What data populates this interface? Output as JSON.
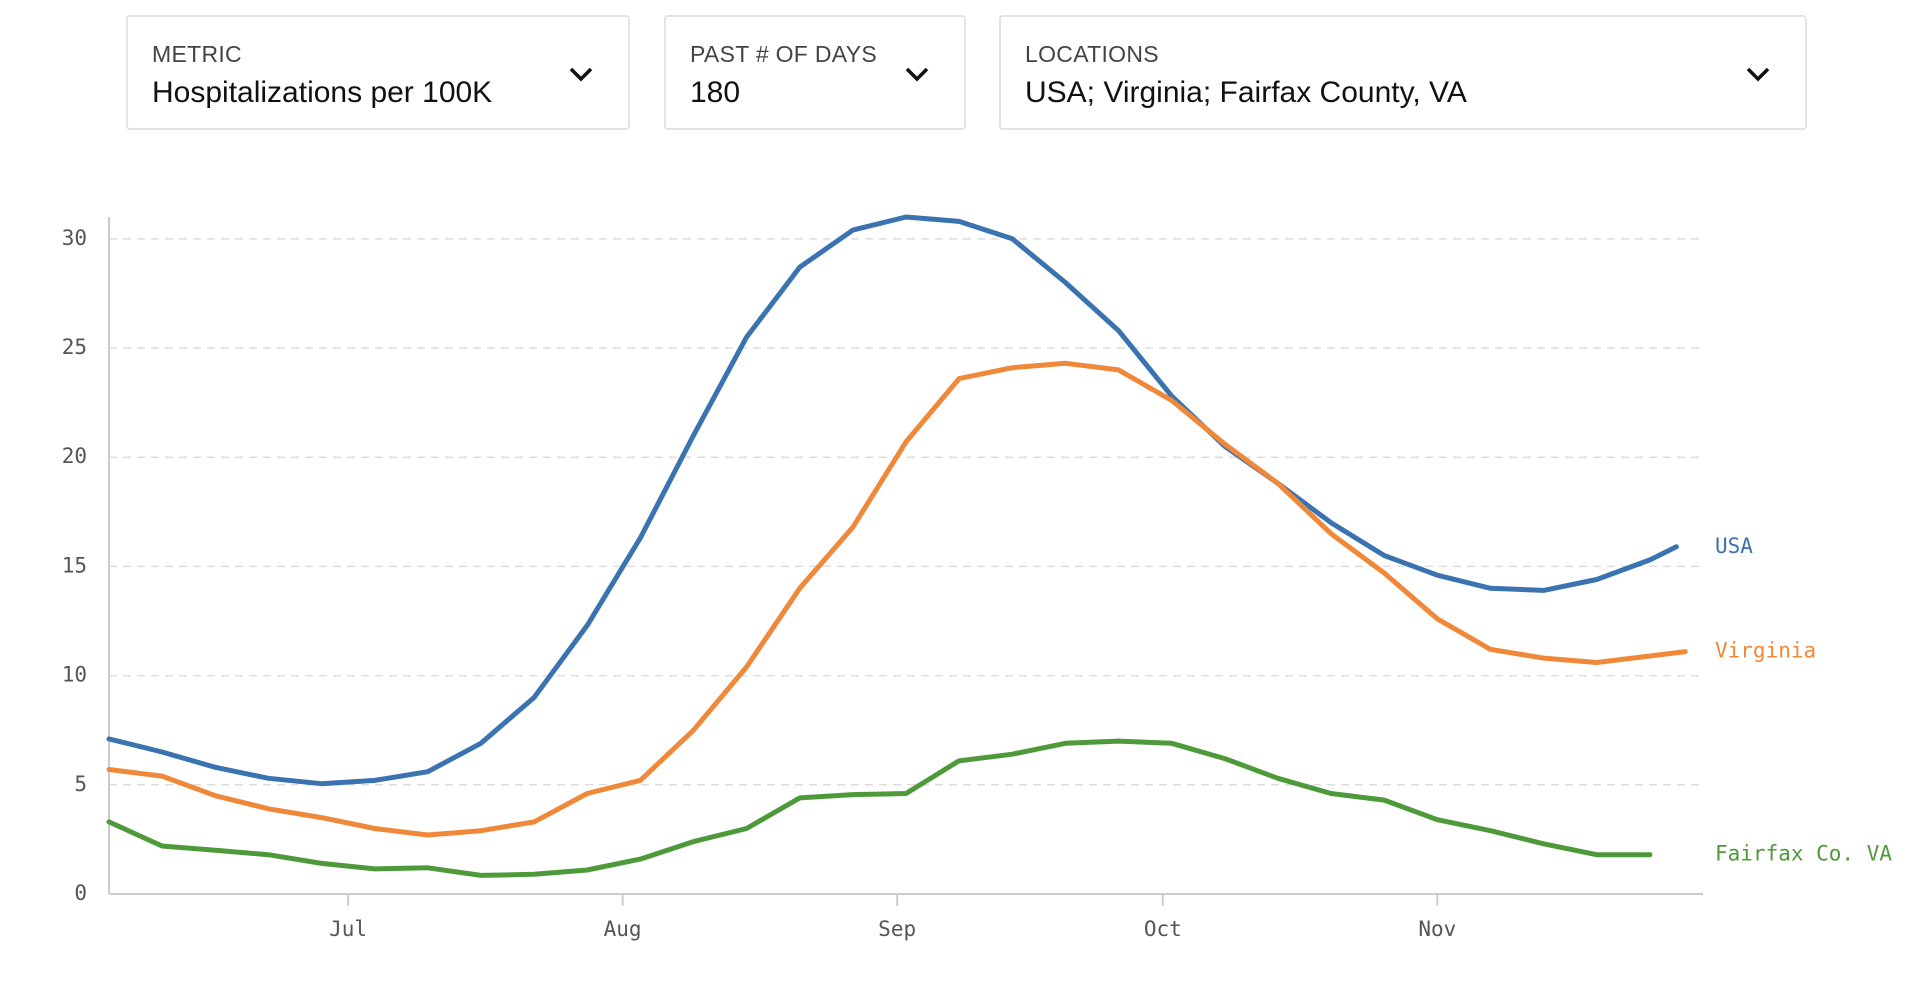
{
  "filters": [
    {
      "label": "METRIC",
      "value": "Hospitalizations per 100K"
    },
    {
      "label": "PAST # OF DAYS",
      "value": "180"
    },
    {
      "label": "LOCATIONS",
      "value": "USA; Virginia; Fairfax County, VA"
    }
  ],
  "chart_data": {
    "type": "line",
    "xlim": [
      0,
      180
    ],
    "xticks": [
      {
        "value": 27,
        "label": "Jul"
      },
      {
        "value": 58,
        "label": "Aug"
      },
      {
        "value": 89,
        "label": "Sep"
      },
      {
        "value": 119,
        "label": "Oct"
      },
      {
        "value": 150,
        "label": "Nov"
      }
    ],
    "ylim": [
      0,
      31
    ],
    "yticks": [
      0,
      5,
      10,
      15,
      20,
      25,
      30
    ],
    "grid": true,
    "series": [
      {
        "name": "USA",
        "color": "#3a73b0",
        "x": [
          0,
          6,
          12,
          18,
          24,
          30,
          36,
          42,
          48,
          54,
          60,
          66,
          72,
          78,
          84,
          90,
          96,
          102,
          108,
          114,
          120,
          126,
          132,
          138,
          144,
          150,
          156,
          162,
          168,
          174,
          177
        ],
        "values": [
          7.1,
          6.5,
          5.8,
          5.3,
          5.05,
          5.2,
          5.6,
          6.9,
          9.0,
          12.3,
          16.3,
          21.0,
          25.5,
          28.7,
          30.4,
          31.0,
          30.8,
          30.0,
          28.0,
          25.8,
          22.8,
          20.5,
          18.8,
          17.0,
          15.5,
          14.6,
          14.0,
          13.9,
          14.4,
          15.3,
          15.9
        ]
      },
      {
        "name": "Virginia",
        "color": "#f0883a",
        "x": [
          0,
          6,
          12,
          18,
          24,
          30,
          36,
          42,
          48,
          54,
          60,
          66,
          72,
          78,
          84,
          90,
          96,
          102,
          108,
          114,
          120,
          126,
          132,
          138,
          144,
          150,
          156,
          162,
          168,
          174,
          178
        ],
        "values": [
          5.7,
          5.4,
          4.5,
          3.9,
          3.5,
          3.0,
          2.7,
          2.9,
          3.3,
          4.6,
          5.2,
          7.5,
          10.4,
          14.0,
          16.8,
          20.7,
          23.6,
          24.1,
          24.3,
          24.0,
          22.6,
          20.6,
          18.8,
          16.5,
          14.7,
          12.6,
          11.2,
          10.8,
          10.6,
          10.9,
          11.1
        ]
      },
      {
        "name": "Fairfax Co. VA",
        "color": "#4e9a3a",
        "x": [
          0,
          6,
          12,
          18,
          24,
          30,
          36,
          42,
          48,
          54,
          60,
          66,
          72,
          78,
          84,
          90,
          96,
          102,
          108,
          114,
          120,
          126,
          132,
          138,
          144,
          150,
          156,
          162,
          168,
          174
        ],
        "values": [
          3.3,
          2.2,
          2.0,
          1.8,
          1.4,
          1.15,
          1.2,
          0.85,
          0.9,
          1.1,
          1.6,
          2.4,
          3.0,
          4.4,
          4.55,
          4.6,
          6.1,
          6.4,
          6.9,
          7.0,
          6.9,
          6.2,
          5.3,
          4.6,
          4.3,
          3.4,
          2.9,
          2.3,
          1.8,
          1.8
        ]
      }
    ]
  }
}
